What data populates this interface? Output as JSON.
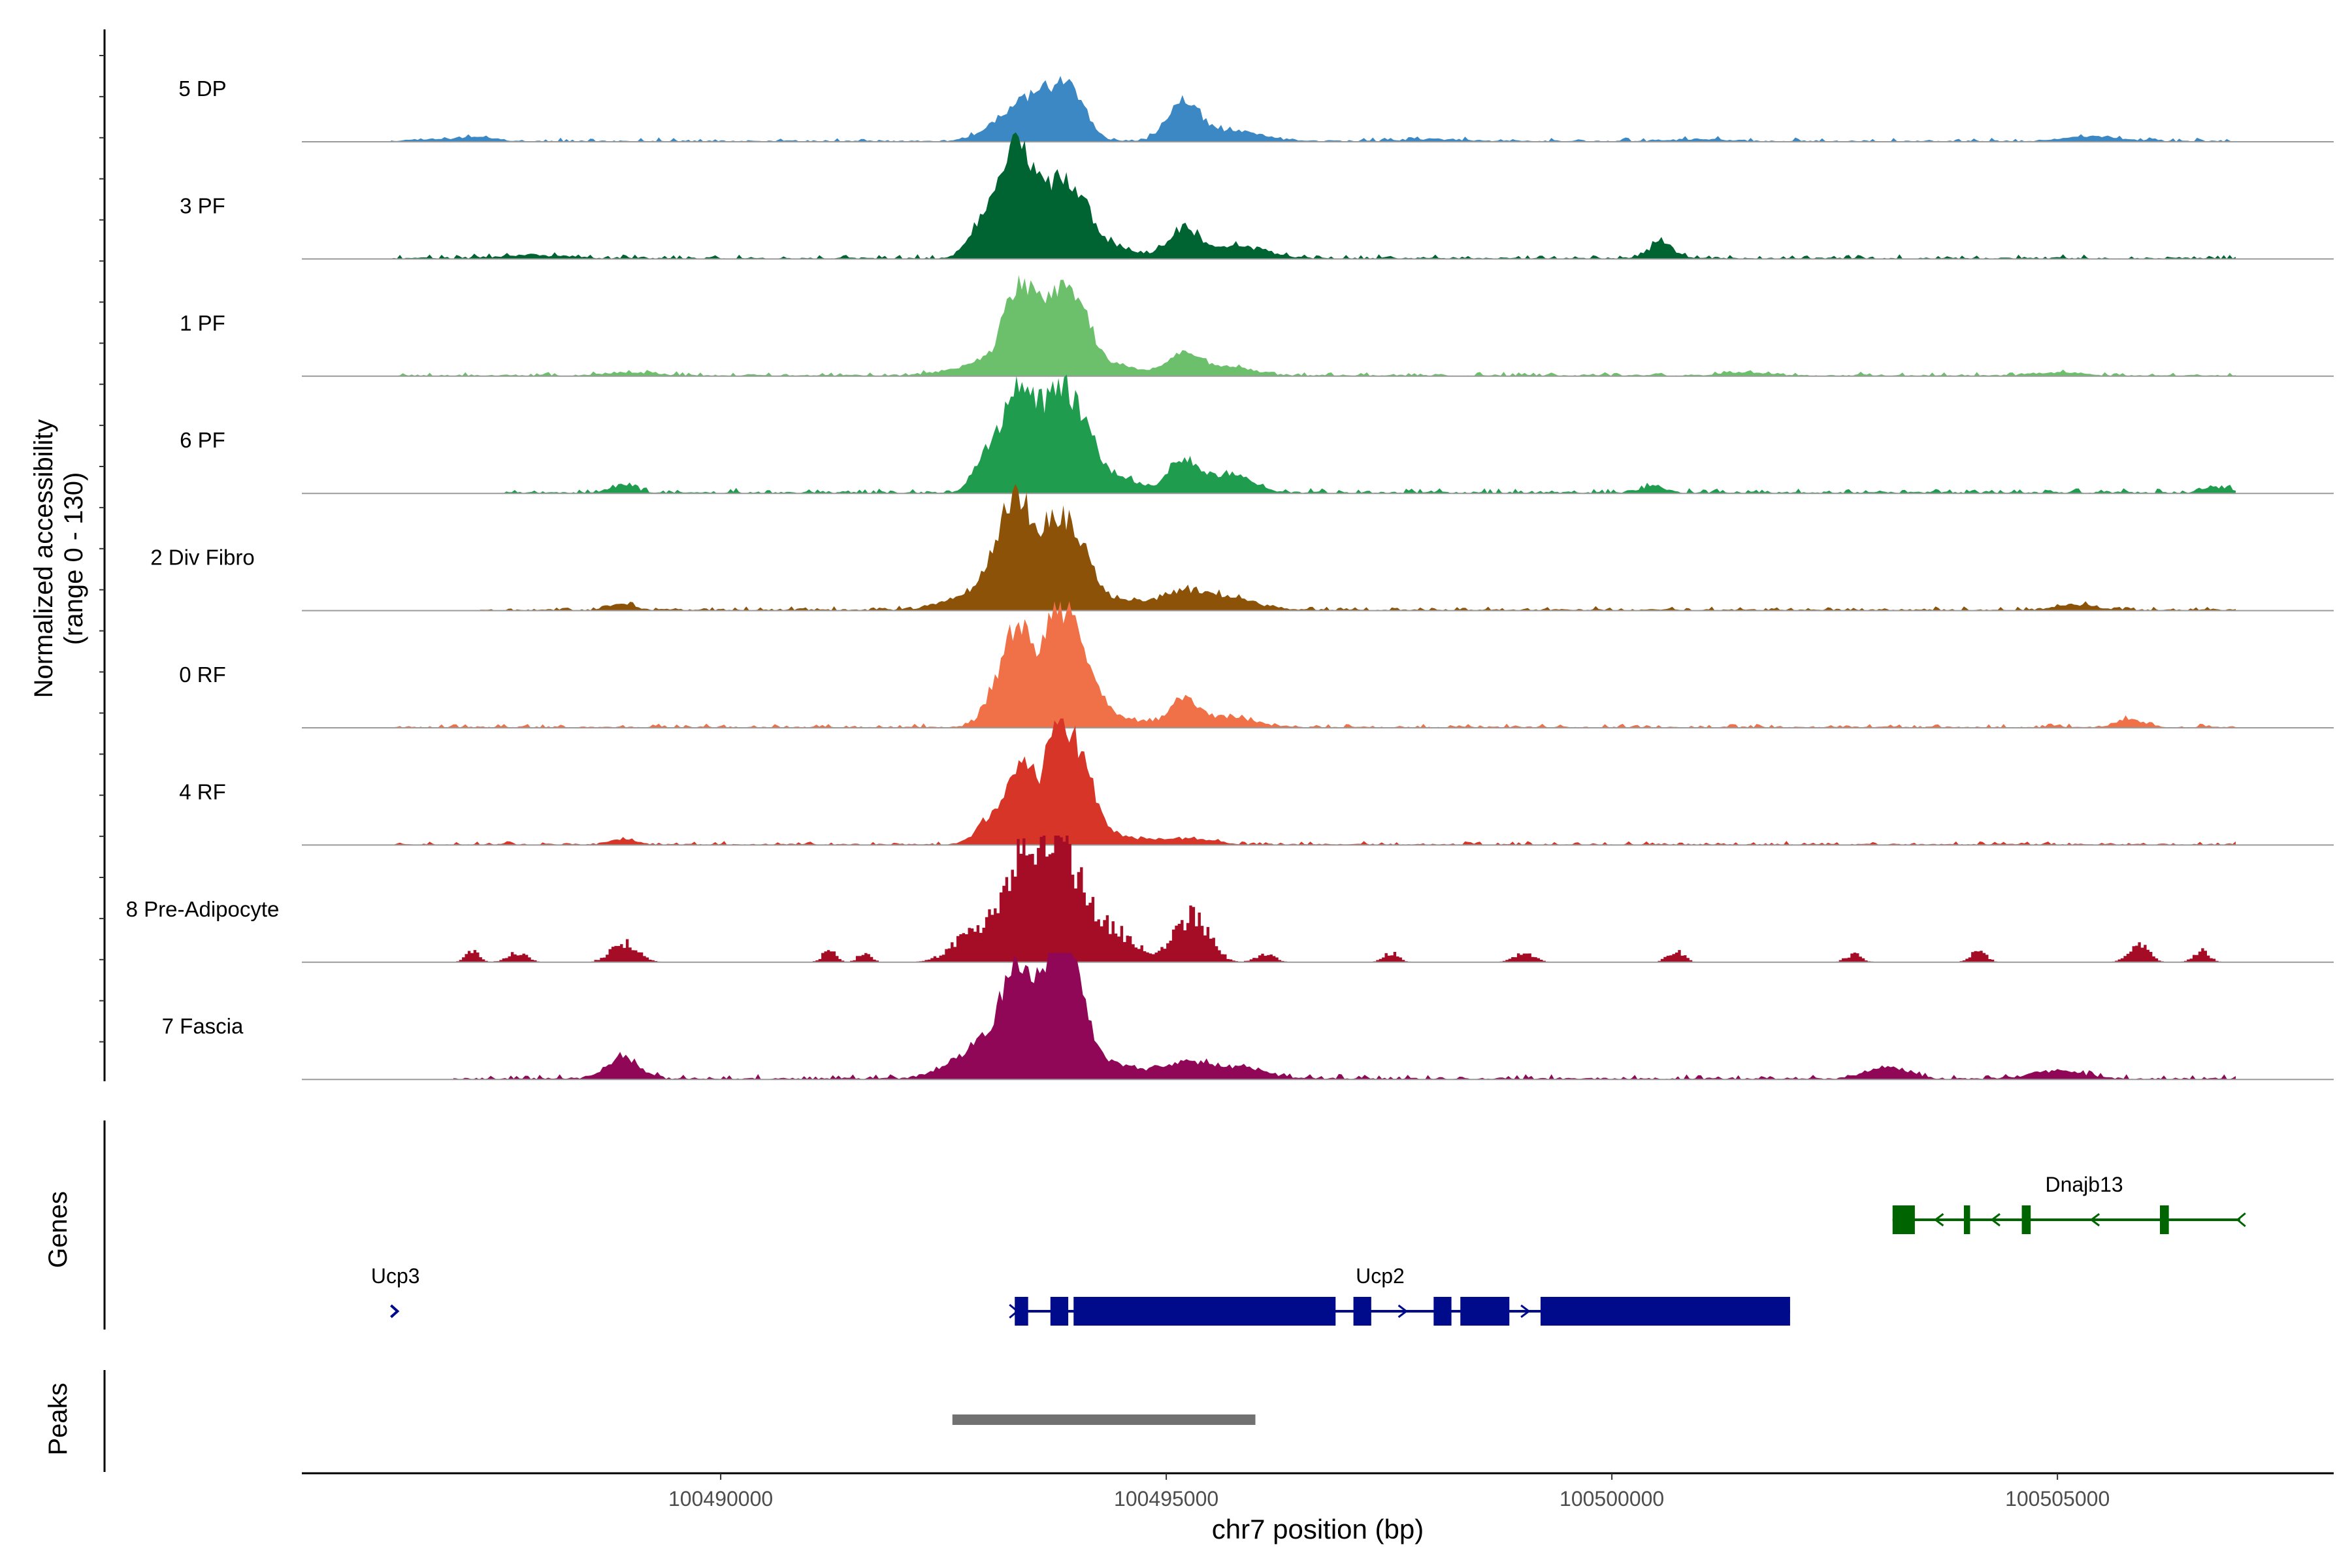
{
  "chart_data": {
    "type": "area",
    "title": "",
    "coverage_ylabel": [
      "Normalized accessibility",
      "(range 0 - 130)"
    ],
    "genes_label": "Genes",
    "peaks_label": "Peaks",
    "xlabel": "chr7 position (bp)",
    "xlim": [
      100485300,
      100508100
    ],
    "x_ticks": [
      100490000,
      100495000,
      100500000,
      100505000
    ],
    "x_tick_labels": [
      "100490000",
      "100495000",
      "100500000",
      "100505000"
    ],
    "y_range": [
      0,
      130
    ],
    "tracks": [
      {
        "name": "5 DP",
        "color": "#3c88c4",
        "peaks": [
          [
            100487300,
            4,
            25
          ],
          [
            100493300,
            30,
            35
          ],
          [
            100493750,
            45,
            30
          ],
          [
            100494000,
            22,
            20
          ],
          [
            100495200,
            38,
            25
          ],
          [
            100495800,
            10,
            40
          ],
          [
            100505400,
            5,
            40
          ],
          [
            100486800,
            2,
            40
          ],
          [
            100498000,
            2,
            50
          ],
          [
            100501000,
            2,
            40
          ]
        ],
        "noise": 2.5,
        "start": 100486300,
        "end": 100507000,
        "seed": 11
      },
      {
        "name": "3 PF",
        "color": "#006432",
        "peaks": [
          [
            100492900,
            30,
            18
          ],
          [
            100493150,
            34,
            18
          ],
          [
            100493350,
            90,
            22
          ],
          [
            100493600,
            20,
            40
          ],
          [
            100493780,
            45,
            22
          ],
          [
            100494050,
            35,
            24
          ],
          [
            100494400,
            10,
            40
          ],
          [
            100495200,
            30,
            22
          ],
          [
            100495800,
            12,
            40
          ],
          [
            100500550,
            15,
            18
          ],
          [
            100487900,
            3,
            50
          ]
        ],
        "noise": 2.8,
        "start": 100486300,
        "end": 100507000,
        "seed": 23
      },
      {
        "name": "1 PF",
        "color": "#6cc06c",
        "peaks": [
          [
            100493000,
            12,
            50
          ],
          [
            100493350,
            70,
            22
          ],
          [
            100493600,
            20,
            40
          ],
          [
            100493780,
            55,
            22
          ],
          [
            100494050,
            40,
            22
          ],
          [
            100494400,
            10,
            40
          ],
          [
            100495200,
            20,
            25
          ],
          [
            100495700,
            8,
            40
          ],
          [
            100489000,
            3,
            40
          ],
          [
            100501500,
            3,
            40
          ],
          [
            100505000,
            3,
            40
          ]
        ],
        "noise": 2.5,
        "start": 100486300,
        "end": 100507000,
        "seed": 37
      },
      {
        "name": "6 PF",
        "color": "#1f9c4e",
        "peaks": [
          [
            100493000,
            35,
            20
          ],
          [
            100493350,
            90,
            22
          ],
          [
            100493600,
            25,
            40
          ],
          [
            100493780,
            70,
            22
          ],
          [
            100494050,
            45,
            22
          ],
          [
            100494400,
            15,
            40
          ],
          [
            100495200,
            30,
            22
          ],
          [
            100495700,
            18,
            35
          ],
          [
            100488900,
            8,
            18
          ],
          [
            100500450,
            6,
            20
          ],
          [
            100506800,
            5,
            20
          ]
        ],
        "noise": 3.0,
        "start": 100487500,
        "end": 100507000,
        "seed": 41
      },
      {
        "name": "2 Div Fibro",
        "color": "#8b5208",
        "peaks": [
          [
            100492800,
            15,
            40
          ],
          [
            100493100,
            35,
            22
          ],
          [
            100493350,
            80,
            22
          ],
          [
            100493600,
            25,
            35
          ],
          [
            100493780,
            62,
            22
          ],
          [
            100494050,
            40,
            22
          ],
          [
            100494500,
            10,
            50
          ],
          [
            100495200,
            15,
            30
          ],
          [
            100495700,
            12,
            40
          ],
          [
            100488900,
            6,
            18
          ],
          [
            100505200,
            5,
            30
          ]
        ],
        "noise": 2.5,
        "start": 100487300,
        "end": 100507000,
        "seed": 53
      },
      {
        "name": "0 RF",
        "color": "#f07048",
        "peaks": [
          [
            100493100,
            28,
            20
          ],
          [
            100493350,
            80,
            20
          ],
          [
            100493600,
            22,
            40
          ],
          [
            100493780,
            85,
            20
          ],
          [
            100494050,
            55,
            22
          ],
          [
            100494400,
            10,
            40
          ],
          [
            100495200,
            25,
            22
          ],
          [
            100495700,
            10,
            40
          ],
          [
            100505800,
            8,
            20
          ]
        ],
        "noise": 2.5,
        "start": 100486300,
        "end": 100507000,
        "seed": 67
      },
      {
        "name": "4 RF",
        "color": "#d63528",
        "peaks": [
          [
            100493000,
            20,
            20
          ],
          [
            100493350,
            65,
            20
          ],
          [
            100493600,
            15,
            40
          ],
          [
            100493780,
            90,
            20
          ],
          [
            100494050,
            62,
            22
          ],
          [
            100494400,
            8,
            40
          ],
          [
            100495200,
            6,
            40
          ],
          [
            100488900,
            5,
            20
          ]
        ],
        "noise": 2.3,
        "start": 100486300,
        "end": 100507000,
        "seed": 71
      },
      {
        "name": "8 Pre-Adipocyte",
        "color": "#a50d27",
        "peaks": [
          [
            100492800,
            35,
            30
          ],
          [
            100493200,
            60,
            25
          ],
          [
            100493400,
            80,
            22
          ],
          [
            100493600,
            45,
            30
          ],
          [
            100493780,
            115,
            20
          ],
          [
            100494000,
            60,
            25
          ],
          [
            100494300,
            30,
            30
          ],
          [
            100494600,
            15,
            30
          ],
          [
            100495200,
            45,
            22
          ],
          [
            100495400,
            30,
            20
          ],
          [
            100488900,
            25,
            20
          ],
          [
            100487200,
            15,
            10
          ],
          [
            100487700,
            12,
            15
          ],
          [
            100491200,
            15,
            10
          ],
          [
            100491600,
            12,
            10
          ],
          [
            100499000,
            12,
            15
          ],
          [
            100500700,
            15,
            12
          ],
          [
            100504100,
            15,
            12
          ],
          [
            100505900,
            22,
            15
          ],
          [
            100506600,
            15,
            12
          ],
          [
            100497500,
            12,
            12
          ],
          [
            100496100,
            10,
            15
          ],
          [
            100502700,
            10,
            12
          ]
        ],
        "noise": 0,
        "step": true,
        "start": 100487000,
        "end": 100507000,
        "seed": 83
      },
      {
        "name": "7 Fascia",
        "color": "#8f0756",
        "peaks": [
          [
            100492800,
            20,
            40
          ],
          [
            100493100,
            30,
            30
          ],
          [
            100493350,
            80,
            22
          ],
          [
            100493600,
            30,
            30
          ],
          [
            100493780,
            105,
            20
          ],
          [
            100494000,
            70,
            20
          ],
          [
            100494400,
            15,
            40
          ],
          [
            100495200,
            15,
            30
          ],
          [
            100495800,
            12,
            40
          ],
          [
            100488900,
            20,
            25
          ],
          [
            100503100,
            12,
            30
          ],
          [
            100505000,
            8,
            40
          ]
        ],
        "noise": 3.0,
        "start": 100487000,
        "end": 100507000,
        "seed": 97
      }
    ],
    "genes": [
      {
        "name": "Ucp3",
        "color": "#000b8c",
        "strand": "+",
        "start": 100486300,
        "end": 100486400,
        "exons": [],
        "label_at": 100486350,
        "row": 2
      },
      {
        "name": "Ucp2",
        "color": "#000b8c",
        "strand": "+",
        "start": 100493300,
        "end": 100502000,
        "exons": [
          [
            100493300,
            100493450
          ],
          [
            100493700,
            100493900
          ],
          [
            100493960,
            100496900
          ],
          [
            100497100,
            100497300
          ],
          [
            100498000,
            100498200
          ],
          [
            100498300,
            100498850
          ],
          [
            100499200,
            100502000
          ]
        ],
        "label_at": 100497400,
        "row": 2
      },
      {
        "name": "Dnajb13",
        "color": "#006400",
        "strand": "-",
        "start": 100503150,
        "end": 100507050,
        "exons": [
          [
            100503150,
            100503400
          ],
          [
            100503950,
            100504020
          ],
          [
            100504600,
            100504700
          ],
          [
            100506150,
            100506250
          ]
        ],
        "label_at": 100505300,
        "row": 1
      }
    ],
    "peaks_regions": [
      [
        100492600,
        100496000
      ]
    ],
    "peak_color": "#717171"
  }
}
